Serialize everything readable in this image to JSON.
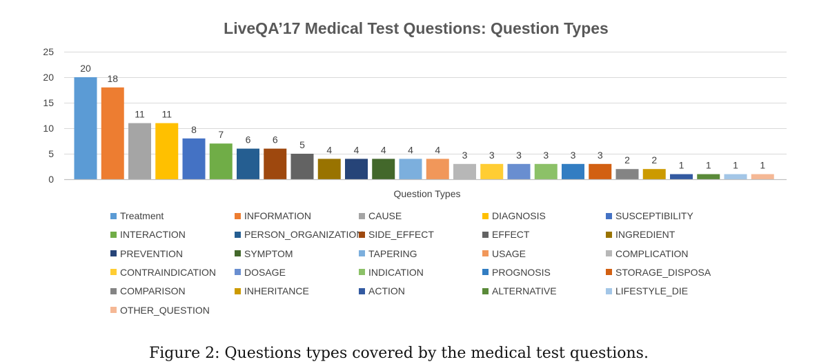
{
  "chart_data": {
    "type": "bar",
    "title": "LiveQA’17 Medical Test Questions: Question Types",
    "xlabel": "Question Types",
    "ylabel": "",
    "ylim": [
      0,
      25
    ],
    "yticks": [
      0,
      5,
      10,
      15,
      20,
      25
    ],
    "grid": true,
    "legend_position": "bottom",
    "categories": [
      "Treatment",
      "INFORMATION",
      "CAUSE",
      "DIAGNOSIS",
      "SUSCEPTIBILITY",
      "INTERACTION",
      "PERSON_ORGANIZATION",
      "SIDE_EFFECT",
      "EFFECT",
      "INGREDIENT",
      "PREVENTION",
      "SYMPTOM",
      "TAPERING",
      "USAGE",
      "COMPLICATION",
      "CONTRAINDICATION",
      "DOSAGE",
      "INDICATION",
      "PROGNOSIS",
      "STORAGE_DISPOSA",
      "COMPARISON",
      "INHERITANCE",
      "ACTION",
      "ALTERNATIVE",
      "LIFESTYLE_DIE",
      "OTHER_QUESTION"
    ],
    "values": [
      20,
      18,
      11,
      11,
      8,
      7,
      6,
      6,
      5,
      4,
      4,
      4,
      4,
      4,
      3,
      3,
      3,
      3,
      3,
      3,
      2,
      2,
      1,
      1,
      1,
      1
    ],
    "colors": [
      "#5b9bd5",
      "#ed7d31",
      "#a5a5a5",
      "#ffc000",
      "#4472c4",
      "#70ad47",
      "#255e91",
      "#9e480e",
      "#636363",
      "#997300",
      "#264478",
      "#43682b",
      "#7cafdd",
      "#f1975a",
      "#b7b7b7",
      "#ffcd33",
      "#698ed0",
      "#8cc168",
      "#327dc2",
      "#d26012",
      "#848484",
      "#cc9a00",
      "#335aa1",
      "#5a8a39",
      "#a3c6e7",
      "#f5b895"
    ]
  },
  "caption": "Figure 2: Questions types covered by the medical test questions."
}
